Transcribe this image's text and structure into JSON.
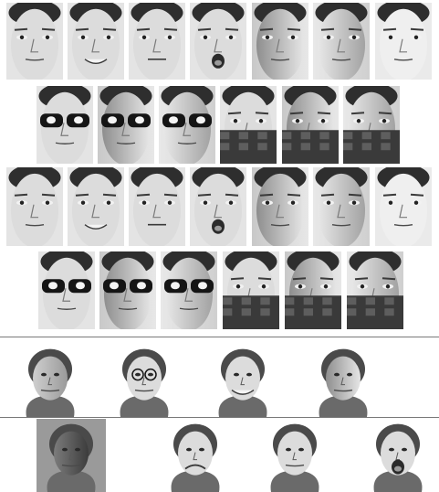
{
  "figure": {
    "rows": [
      {
        "id": "ar-session-1-row",
        "faces": [
          {
            "expression": "neutral",
            "lighting": "front",
            "occlusion": "none"
          },
          {
            "expression": "smile",
            "lighting": "front",
            "occlusion": "none"
          },
          {
            "expression": "anger",
            "lighting": "front",
            "occlusion": "none"
          },
          {
            "expression": "scream",
            "lighting": "front",
            "occlusion": "none"
          },
          {
            "expression": "neutral",
            "lighting": "left",
            "occlusion": "none"
          },
          {
            "expression": "neutral",
            "lighting": "right",
            "occlusion": "none"
          },
          {
            "expression": "neutral",
            "lighting": "both",
            "occlusion": "none"
          }
        ]
      },
      {
        "id": "ar-session-1-occlusion-row",
        "faces": [
          {
            "expression": "neutral",
            "lighting": "front",
            "occlusion": "sunglasses"
          },
          {
            "expression": "neutral",
            "lighting": "left",
            "occlusion": "sunglasses"
          },
          {
            "expression": "neutral",
            "lighting": "right",
            "occlusion": "sunglasses"
          },
          {
            "expression": "neutral",
            "lighting": "front",
            "occlusion": "scarf"
          },
          {
            "expression": "neutral",
            "lighting": "left",
            "occlusion": "scarf"
          },
          {
            "expression": "neutral",
            "lighting": "right",
            "occlusion": "scarf"
          }
        ]
      },
      {
        "id": "ar-session-2-row",
        "faces": [
          {
            "expression": "neutral",
            "lighting": "front",
            "occlusion": "none"
          },
          {
            "expression": "smile",
            "lighting": "front",
            "occlusion": "none"
          },
          {
            "expression": "anger",
            "lighting": "front",
            "occlusion": "none"
          },
          {
            "expression": "scream",
            "lighting": "front",
            "occlusion": "none"
          },
          {
            "expression": "neutral",
            "lighting": "left",
            "occlusion": "none"
          },
          {
            "expression": "neutral",
            "lighting": "right",
            "occlusion": "none"
          },
          {
            "expression": "neutral",
            "lighting": "both",
            "occlusion": "none"
          }
        ]
      },
      {
        "id": "ar-session-2-occlusion-row",
        "faces": [
          {
            "expression": "neutral",
            "lighting": "front",
            "occlusion": "sunglasses"
          },
          {
            "expression": "neutral",
            "lighting": "left",
            "occlusion": "sunglasses"
          },
          {
            "expression": "neutral",
            "lighting": "right",
            "occlusion": "sunglasses"
          },
          {
            "expression": "neutral",
            "lighting": "front",
            "occlusion": "scarf"
          },
          {
            "expression": "neutral",
            "lighting": "left",
            "occlusion": "scarf"
          },
          {
            "expression": "neutral",
            "lighting": "right",
            "occlusion": "scarf"
          }
        ]
      },
      {
        "id": "yale-row-1",
        "faces": [
          {
            "expression": "neutral",
            "lighting": "side",
            "occlusion": "none"
          },
          {
            "expression": "neutral",
            "lighting": "front",
            "occlusion": "glasses"
          },
          {
            "expression": "happy",
            "lighting": "front",
            "occlusion": "none"
          },
          {
            "expression": "neutral",
            "lighting": "left",
            "occlusion": "none"
          }
        ]
      },
      {
        "id": "yale-row-2",
        "faces": [
          {
            "expression": "neutral",
            "lighting": "dark",
            "occlusion": "none"
          },
          {
            "expression": "sad",
            "lighting": "front",
            "occlusion": "none"
          },
          {
            "expression": "sleepy",
            "lighting": "front",
            "occlusion": "none"
          },
          {
            "expression": "surprised",
            "lighting": "front",
            "occlusion": "none"
          }
        ]
      }
    ],
    "colors": {
      "background": "#ffffff",
      "divider": "#7a7a7a",
      "skin_light": "#dcdcdc",
      "skin_mid": "#b8b8b8",
      "hair": "#2e2e2e",
      "yale_hair": "#4a4a4a",
      "glasses": "#151515",
      "scarf_dark": "#3a3a3a",
      "scarf_light": "#6e6e6e"
    }
  }
}
